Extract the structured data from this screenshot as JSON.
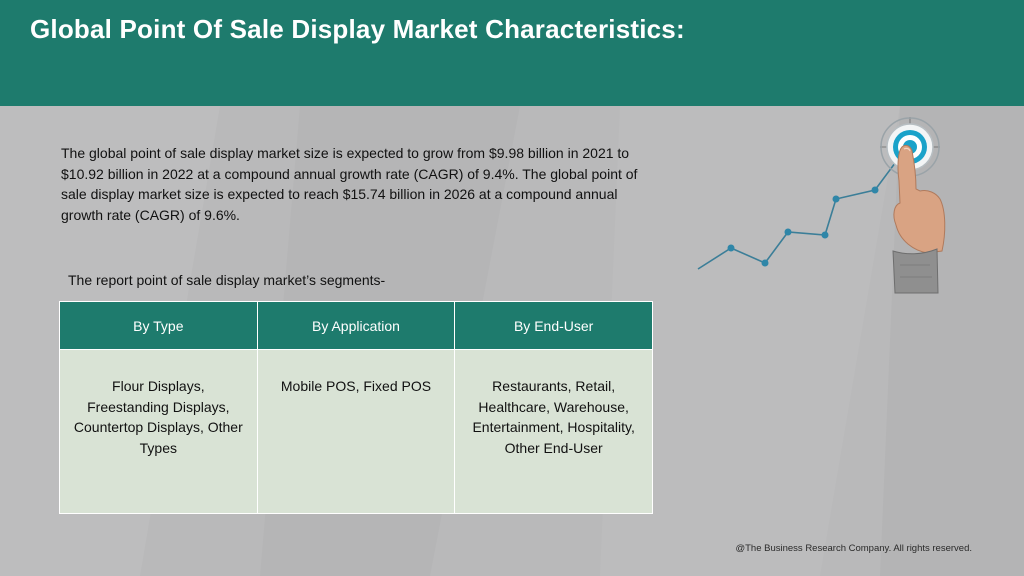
{
  "header": {
    "title": "Global Point Of Sale Display Market Characteristics:"
  },
  "intro": {
    "text": "The global point of sale display market size is expected to grow from $9.98 billion in 2021 to $10.92 billion in 2022 at a compound annual growth rate (CAGR) of 9.4%. The global point of sale display market size is expected to reach $15.74 billion in 2026 at a compound annual growth rate (CAGR) of 9.6%."
  },
  "segments": {
    "label": "The report point of sale display market’s segments-",
    "columns": [
      "By Type",
      "By Application",
      "By End-User"
    ],
    "cells": [
      "Flour Displays, Freestanding Displays, Countertop Displays, Other Types",
      "Mobile POS, Fixed POS",
      "Restaurants, Retail, Healthcare, Warehouse, Entertainment, Hospitality, Other End-User"
    ]
  },
  "footer": {
    "copyright": "@The Business Research Company. All rights reserved."
  },
  "colors": {
    "header": "#1e7b6d",
    "table_header": "#1e7b6d",
    "table_cell": "#d9e3d5",
    "background": "#b9b9ba"
  },
  "icons": [
    "target-icon",
    "pointing-hand-icon",
    "growth-line-icon"
  ]
}
